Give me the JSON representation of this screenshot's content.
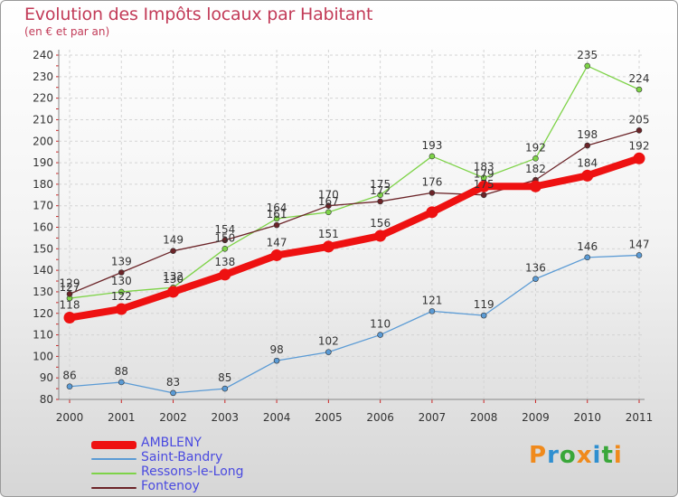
{
  "header": {
    "title": "Evolution des Impôts locaux par Habitant",
    "subtitle": "(en € et par an)"
  },
  "logo": {
    "text": "Proxiti"
  },
  "chart_data": {
    "type": "line",
    "title": "Evolution des Impôts locaux par Habitant",
    "subtitle": "(en € et par an)",
    "xlabel": "",
    "ylabel": "",
    "x": [
      "2000",
      "2001",
      "2002",
      "2003",
      "2004",
      "2005",
      "2006",
      "2007",
      "2008",
      "2009",
      "2010",
      "2011"
    ],
    "ylim": [
      80,
      240
    ],
    "yticks": [
      "80",
      "90",
      "100",
      "110",
      "120",
      "130",
      "140",
      "150",
      "160",
      "170",
      "180",
      "190",
      "200",
      "210",
      "220",
      "230",
      "240"
    ],
    "grid": true,
    "legend_position": "bottom-left",
    "series": [
      {
        "name": "AMBLENY",
        "color": "#ee1111",
        "values": [
          118,
          122,
          130,
          138,
          147,
          151,
          156,
          167,
          179,
          179,
          184,
          192
        ],
        "labels": [
          "118",
          "122",
          "130",
          "138",
          "147",
          "151",
          "156",
          "",
          "179",
          "",
          "184",
          "192"
        ]
      },
      {
        "name": "Saint-Bandry",
        "color": "#5b9bd5",
        "values": [
          86,
          88,
          83,
          85,
          98,
          102,
          110,
          121,
          119,
          136,
          146,
          147
        ],
        "labels": [
          "86",
          "88",
          "83",
          "85",
          "98",
          "102",
          "110",
          "121",
          "119",
          "136",
          "146",
          "147"
        ]
      },
      {
        "name": "Ressons-le-Long",
        "color": "#7ed348",
        "values": [
          127,
          130,
          132,
          150,
          164,
          167,
          175,
          193,
          183,
          192,
          235,
          224
        ],
        "labels": [
          "127",
          "130",
          "132",
          "150",
          "164",
          "167",
          "175",
          "193",
          "183",
          "192",
          "235",
          "224"
        ]
      },
      {
        "name": "Fontenoy",
        "color": "#6b2428",
        "values": [
          129,
          139,
          149,
          154,
          161,
          170,
          172,
          176,
          175,
          182,
          198,
          205
        ],
        "labels": [
          "129",
          "139",
          "149",
          "154",
          "161",
          "170",
          "172",
          "176",
          "175",
          "182",
          "198",
          "205"
        ]
      }
    ]
  }
}
